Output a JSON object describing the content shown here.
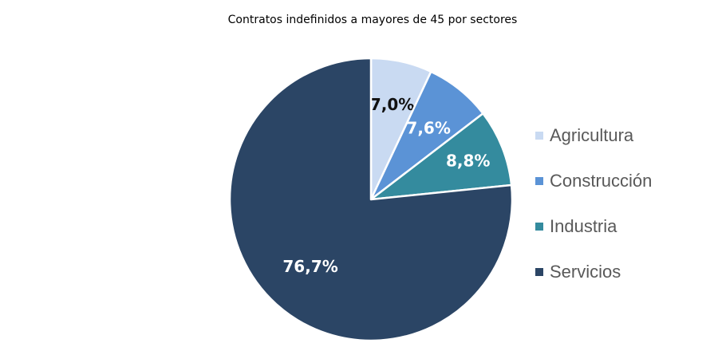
{
  "chart_data": {
    "type": "pie",
    "title": "Contratos indefinidos a mayores de 45 por sectores",
    "categories": [
      "Agricultura",
      "Construcción",
      "Industria",
      "Servicios"
    ],
    "values": [
      7.0,
      7.6,
      8.8,
      76.7
    ],
    "data_labels": [
      "7,0%",
      "7,6%",
      "8,8%",
      "76,7%"
    ],
    "colors": [
      "#c9daf2",
      "#5b93d6",
      "#348b9e",
      "#2b4565"
    ],
    "label_colors": [
      "#111111",
      "#ffffff",
      "#ffffff",
      "#ffffff"
    ],
    "legend_position": "right"
  }
}
